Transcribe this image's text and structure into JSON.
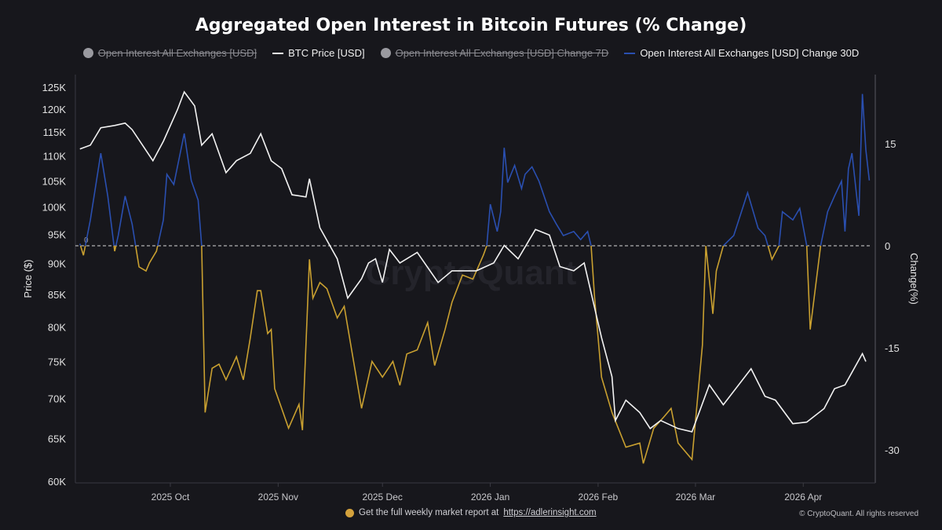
{
  "chart_data": {
    "type": "line",
    "title": "Aggregated Open Interest in Bitcoin Futures (% Change)",
    "legend": [
      {
        "name": "Open Interest All Exchanges [USD]",
        "visible": false,
        "color": "#9a9aa0"
      },
      {
        "name": "BTC Price [USD]",
        "visible": true,
        "color": "#ffffff"
      },
      {
        "name": "Open Interest All Exchanges [USD] Change 7D",
        "visible": false,
        "color": "#9a9aa0"
      },
      {
        "name": "Open Interest All Exchanges [USD] Change 30D",
        "visible": true,
        "color": "#2a4fb0"
      }
    ],
    "legend_position": "top",
    "x_ticks": [
      "2025 Oct",
      "2025 Nov",
      "2025 Dec",
      "2026 Jan",
      "2026 Feb",
      "2026 Mar",
      "2026 Apr"
    ],
    "x_tick_dates": [
      "2025-10-01",
      "2025-11-01",
      "2025-12-01",
      "2026-01-01",
      "2026-02-01",
      "2026-03-01",
      "2026-04-01"
    ],
    "xlim": [
      "2025-09-04",
      "2026-04-20"
    ],
    "y_left": {
      "label": "Price ($)",
      "scale": "log",
      "lim": [
        60000,
        125000
      ],
      "ticks": [
        "125K",
        "120K",
        "115K",
        "110K",
        "105K",
        "100K",
        "95K",
        "90K",
        "85K",
        "80K",
        "75K",
        "70K",
        "65K",
        "60K"
      ],
      "tick_values": [
        125000,
        120000,
        115000,
        110000,
        105000,
        100000,
        95000,
        90000,
        85000,
        80000,
        75000,
        70000,
        65000,
        60000
      ]
    },
    "y_right": {
      "label": "Change(%)",
      "lim": [
        -35,
        23
      ],
      "ticks": [
        "15",
        "0",
        "-15",
        "-30"
      ],
      "tick_values": [
        15,
        0,
        -15,
        -30
      ]
    },
    "zero_line_label": "0",
    "grid": false,
    "colors": {
      "price": "#f2f2f2",
      "change_positive": "#2a4fb0",
      "change_negative": "#c9a030",
      "background": "#17171c"
    },
    "series": [
      {
        "name": "BTC Price [USD]",
        "axis": "left",
        "points": [
          [
            "2025-09-05",
            111400
          ],
          [
            "2025-09-08",
            112200
          ],
          [
            "2025-09-11",
            115900
          ],
          [
            "2025-09-15",
            116400
          ],
          [
            "2025-09-18",
            116900
          ],
          [
            "2025-09-20",
            115500
          ],
          [
            "2025-09-23",
            112200
          ],
          [
            "2025-09-26",
            109000
          ],
          [
            "2025-09-29",
            113000
          ],
          [
            "2025-10-03",
            119800
          ],
          [
            "2025-10-05",
            123900
          ],
          [
            "2025-10-08",
            120700
          ],
          [
            "2025-10-10",
            112200
          ],
          [
            "2025-10-13",
            114600
          ],
          [
            "2025-10-17",
            106600
          ],
          [
            "2025-10-20",
            109000
          ],
          [
            "2025-10-24",
            110500
          ],
          [
            "2025-10-27",
            114600
          ],
          [
            "2025-10-30",
            109000
          ],
          [
            "2025-11-02",
            107400
          ],
          [
            "2025-11-05",
            102300
          ],
          [
            "2025-11-09",
            101900
          ],
          [
            "2025-11-10",
            105400
          ],
          [
            "2025-11-13",
            96200
          ],
          [
            "2025-11-18",
            90800
          ],
          [
            "2025-11-21",
            84400
          ],
          [
            "2025-11-25",
            87500
          ],
          [
            "2025-11-27",
            90100
          ],
          [
            "2025-11-29",
            90800
          ],
          [
            "2025-12-01",
            86900
          ],
          [
            "2025-12-03",
            92400
          ],
          [
            "2025-12-06",
            90100
          ],
          [
            "2025-12-08",
            90800
          ],
          [
            "2025-12-11",
            91900
          ],
          [
            "2025-12-17",
            86900
          ],
          [
            "2025-12-21",
            88800
          ],
          [
            "2025-12-28",
            88800
          ],
          [
            "2026-01-02",
            90100
          ],
          [
            "2026-01-05",
            93100
          ],
          [
            "2026-01-09",
            90800
          ],
          [
            "2026-01-14",
            95900
          ],
          [
            "2026-01-18",
            94900
          ],
          [
            "2026-01-21",
            89500
          ],
          [
            "2026-01-25",
            88800
          ],
          [
            "2026-01-28",
            90100
          ],
          [
            "2026-02-02",
            78400
          ],
          [
            "2026-02-05",
            72900
          ],
          [
            "2026-02-06",
            67200
          ],
          [
            "2026-02-09",
            69800
          ],
          [
            "2026-02-13",
            68200
          ],
          [
            "2026-02-16",
            66200
          ],
          [
            "2026-02-19",
            67200
          ],
          [
            "2026-02-24",
            66200
          ],
          [
            "2026-02-28",
            65800
          ],
          [
            "2026-03-05",
            71800
          ],
          [
            "2026-03-09",
            69200
          ],
          [
            "2026-03-17",
            74000
          ],
          [
            "2026-03-21",
            70300
          ],
          [
            "2026-03-24",
            69800
          ],
          [
            "2026-03-29",
            66800
          ],
          [
            "2026-04-02",
            67000
          ],
          [
            "2026-04-07",
            68700
          ],
          [
            "2026-04-10",
            71300
          ],
          [
            "2026-04-13",
            71800
          ],
          [
            "2026-04-18",
            76100
          ],
          [
            "2026-04-19",
            75000
          ]
        ]
      },
      {
        "name": "Open Interest All Exchanges [USD] Change 30D",
        "axis": "right",
        "points": [
          [
            "2025-09-05",
            0.3
          ],
          [
            "2025-09-06",
            -1.4
          ],
          [
            "2025-09-08",
            3.8
          ],
          [
            "2025-09-11",
            13.6
          ],
          [
            "2025-09-13",
            7.3
          ],
          [
            "2025-09-15",
            -0.8
          ],
          [
            "2025-09-16",
            1.5
          ],
          [
            "2025-09-18",
            7.3
          ],
          [
            "2025-09-20",
            3.2
          ],
          [
            "2025-09-22",
            -3.1
          ],
          [
            "2025-09-24",
            -3.7
          ],
          [
            "2025-09-25",
            -2.5
          ],
          [
            "2025-09-27",
            -0.8
          ],
          [
            "2025-09-29",
            3.8
          ],
          [
            "2025-09-30",
            10.5
          ],
          [
            "2025-10-02",
            9.0
          ],
          [
            "2025-10-05",
            16.5
          ],
          [
            "2025-10-07",
            9.6
          ],
          [
            "2025-10-09",
            6.7
          ],
          [
            "2025-10-10",
            0
          ],
          [
            "2025-10-11",
            -24.5
          ],
          [
            "2025-10-13",
            -18.0
          ],
          [
            "2025-10-15",
            -17.4
          ],
          [
            "2025-10-17",
            -19.7
          ],
          [
            "2025-10-20",
            -16.3
          ],
          [
            "2025-10-22",
            -19.7
          ],
          [
            "2025-10-24",
            -13.5
          ],
          [
            "2025-10-26",
            -6.6
          ],
          [
            "2025-10-27",
            -6.6
          ],
          [
            "2025-10-29",
            -12.9
          ],
          [
            "2025-10-30",
            -12.3
          ],
          [
            "2025-10-31",
            -21.0
          ],
          [
            "2025-11-02",
            -23.9
          ],
          [
            "2025-11-04",
            -26.8
          ],
          [
            "2025-11-07",
            -23.3
          ],
          [
            "2025-11-08",
            -27.1
          ],
          [
            "2025-11-10",
            -2.0
          ],
          [
            "2025-11-11",
            -7.7
          ],
          [
            "2025-11-13",
            -5.4
          ],
          [
            "2025-11-15",
            -6.3
          ],
          [
            "2025-11-18",
            -10.6
          ],
          [
            "2025-11-20",
            -8.9
          ],
          [
            "2025-11-25",
            -23.9
          ],
          [
            "2025-11-28",
            -17.0
          ],
          [
            "2025-12-01",
            -19.3
          ],
          [
            "2025-12-04",
            -17.0
          ],
          [
            "2025-12-06",
            -20.5
          ],
          [
            "2025-12-08",
            -15.9
          ],
          [
            "2025-12-11",
            -15.3
          ],
          [
            "2025-12-14",
            -11.3
          ],
          [
            "2025-12-16",
            -17.6
          ],
          [
            "2025-12-19",
            -12.3
          ],
          [
            "2025-12-21",
            -8.3
          ],
          [
            "2025-12-24",
            -4.3
          ],
          [
            "2025-12-27",
            -4.9
          ],
          [
            "2025-12-30",
            -1.4
          ],
          [
            "2025-12-31",
            0
          ],
          [
            "2026-01-01",
            6.1
          ],
          [
            "2026-01-03",
            2.1
          ],
          [
            "2026-01-04",
            5.0
          ],
          [
            "2026-01-05",
            14.4
          ],
          [
            "2026-01-06",
            9.3
          ],
          [
            "2026-01-08",
            11.8
          ],
          [
            "2026-01-10",
            8.4
          ],
          [
            "2026-01-11",
            10.5
          ],
          [
            "2026-01-13",
            11.6
          ],
          [
            "2026-01-15",
            9.5
          ],
          [
            "2026-01-18",
            5.0
          ],
          [
            "2026-01-20",
            3.2
          ],
          [
            "2026-01-22",
            1.5
          ],
          [
            "2026-01-25",
            2.1
          ],
          [
            "2026-01-27",
            0.9
          ],
          [
            "2026-01-29",
            2.1
          ],
          [
            "2026-01-30",
            0
          ],
          [
            "2026-01-31",
            -7.7
          ],
          [
            "2026-02-02",
            -19.3
          ],
          [
            "2026-02-05",
            -24.5
          ],
          [
            "2026-02-09",
            -29.6
          ],
          [
            "2026-02-13",
            -29.0
          ],
          [
            "2026-02-14",
            -32.0
          ],
          [
            "2026-02-17",
            -26.8
          ],
          [
            "2026-02-20",
            -25.1
          ],
          [
            "2026-02-22",
            -23.9
          ],
          [
            "2026-02-24",
            -29.0
          ],
          [
            "2026-02-28",
            -31.4
          ],
          [
            "2026-03-03",
            -14.6
          ],
          [
            "2026-03-04",
            0
          ],
          [
            "2026-03-06",
            -10.0
          ],
          [
            "2026-03-07",
            -3.7
          ],
          [
            "2026-03-09",
            0
          ],
          [
            "2026-03-12",
            1.5
          ],
          [
            "2026-03-16",
            7.8
          ],
          [
            "2026-03-19",
            2.6
          ],
          [
            "2026-03-21",
            1.5
          ],
          [
            "2026-03-23",
            -2.0
          ],
          [
            "2026-03-25",
            0
          ],
          [
            "2026-03-26",
            5.0
          ],
          [
            "2026-03-29",
            3.8
          ],
          [
            "2026-03-31",
            5.5
          ],
          [
            "2026-04-02",
            0
          ],
          [
            "2026-04-03",
            -12.3
          ],
          [
            "2026-04-06",
            0
          ],
          [
            "2026-04-08",
            5.0
          ],
          [
            "2026-04-10",
            7.3
          ],
          [
            "2026-04-12",
            9.5
          ],
          [
            "2026-04-13",
            2.1
          ],
          [
            "2026-04-14",
            11.3
          ],
          [
            "2026-04-15",
            13.6
          ],
          [
            "2026-04-17",
            4.4
          ],
          [
            "2026-04-18",
            22.3
          ],
          [
            "2026-04-19",
            14.1
          ],
          [
            "2026-04-20",
            9.6
          ]
        ]
      }
    ]
  },
  "watermark": "CryptoQuant",
  "footer": {
    "text": "Get the full weekly market report at",
    "link": "https://adlerinsight.com",
    "copyright": "© CryptoQuant. All rights reserved"
  }
}
